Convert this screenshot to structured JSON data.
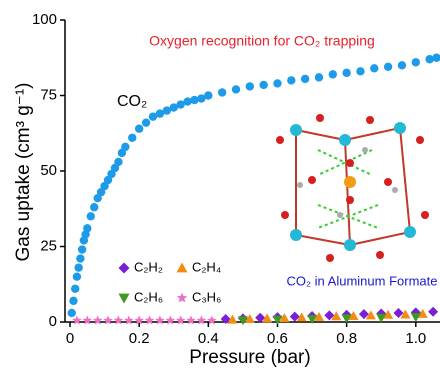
{
  "chart_data": {
    "type": "scatter",
    "annotation": "Oxygen recognition for CO₂ trapping",
    "series_label": "CO₂",
    "inset_caption": "CO₂ in Aluminum Formate",
    "xlabel": "Pressure (bar)",
    "ylabel": "Gas uptake (cm³ g⁻¹)",
    "xlim": [
      -0.0145,
      1.07
    ],
    "ylim": [
      0,
      100
    ],
    "xticks": [
      0,
      0.2,
      0.4,
      0.6,
      0.8,
      {
        "value": 1,
        "label": "1.0"
      }
    ],
    "yticks": [
      0,
      25,
      50,
      75,
      100
    ],
    "grid": false,
    "series": [
      {
        "name": "CO₂",
        "color": "#1e9be8",
        "marker": "circle",
        "in_legend": false,
        "x": [
          0.005,
          0.01,
          0.015,
          0.02,
          0.025,
          0.03,
          0.035,
          0.04,
          0.045,
          0.05,
          0.06,
          0.07,
          0.08,
          0.09,
          0.1,
          0.11,
          0.12,
          0.13,
          0.14,
          0.15,
          0.16,
          0.18,
          0.2,
          0.22,
          0.24,
          0.26,
          0.28,
          0.3,
          0.32,
          0.34,
          0.36,
          0.38,
          0.4,
          0.44,
          0.48,
          0.52,
          0.56,
          0.6,
          0.64,
          0.68,
          0.72,
          0.76,
          0.8,
          0.84,
          0.88,
          0.92,
          0.96,
          1.0,
          1.04,
          1.06
        ],
        "values": [
          3,
          7,
          11,
          15,
          18,
          21,
          24,
          27,
          29,
          31,
          35,
          38,
          41,
          43,
          45,
          47,
          49,
          51,
          53,
          56,
          58,
          61,
          64,
          66,
          68,
          69,
          70,
          71,
          72,
          73,
          73.5,
          74,
          75,
          76,
          77,
          78,
          78.5,
          79,
          80,
          80.5,
          81,
          82,
          82.5,
          83,
          84,
          84.5,
          85,
          86,
          87,
          87.5
        ]
      },
      {
        "name": "C₂H₂",
        "color": "#7a1fd6",
        "marker": "diamond",
        "in_legend": true,
        "x": [
          0.45,
          0.5,
          0.55,
          0.6,
          0.65,
          0.7,
          0.75,
          0.8,
          0.85,
          0.9,
          0.95,
          1.0,
          1.05
        ],
        "values": [
          1,
          1.2,
          1.4,
          1.6,
          1.8,
          2,
          2.2,
          2.4,
          2.6,
          2.8,
          3,
          3.2,
          3.4
        ]
      },
      {
        "name": "C₂H₄",
        "color": "#f28c12",
        "marker": "triangle",
        "in_legend": true,
        "x": [
          0.47,
          0.52,
          0.57,
          0.62,
          0.67,
          0.72,
          0.77,
          0.82,
          0.87,
          0.92,
          0.97,
          1.02
        ],
        "values": [
          0.8,
          1,
          1.2,
          1.3,
          1.5,
          1.7,
          1.9,
          2,
          2.2,
          2.4,
          2.5,
          2.7
        ]
      },
      {
        "name": "C₂H₆",
        "color": "#3c9a1e",
        "marker": "triangle-down",
        "in_legend": true,
        "x": [
          0.5,
          0.6,
          0.7,
          0.8,
          0.9,
          1.0
        ],
        "values": [
          0.6,
          0.8,
          1,
          1.2,
          1.4,
          1.6
        ]
      },
      {
        "name": "C₃H₆",
        "color": "#f06ec8",
        "marker": "star",
        "in_legend": true,
        "x": [
          0.02,
          0.05,
          0.08,
          0.11,
          0.14,
          0.17,
          0.2,
          0.23,
          0.26,
          0.29,
          0.32,
          0.35,
          0.38,
          0.41
        ],
        "values": [
          0.5,
          0.5,
          0.5,
          0.5,
          0.5,
          0.5,
          0.5,
          0.5,
          0.5,
          0.5,
          0.5,
          0.5,
          0.5,
          0.5
        ]
      }
    ]
  }
}
